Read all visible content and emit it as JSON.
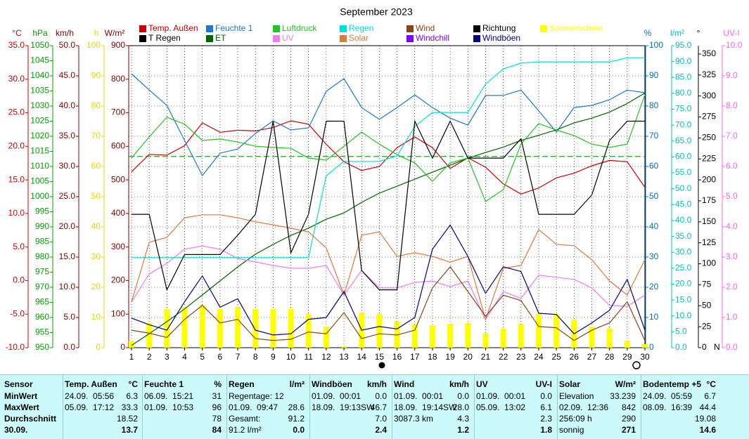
{
  "chart_data": {
    "type": "line",
    "title": "September 2023",
    "x": [
      1,
      2,
      3,
      4,
      5,
      6,
      7,
      8,
      9,
      10,
      11,
      12,
      13,
      14,
      15,
      16,
      17,
      18,
      19,
      20,
      21,
      22,
      23,
      24,
      25,
      26,
      27,
      28,
      29,
      30
    ],
    "xlim": [
      1,
      30
    ],
    "xticks": [
      1,
      2,
      3,
      4,
      5,
      6,
      7,
      8,
      9,
      10,
      11,
      12,
      13,
      14,
      15,
      16,
      17,
      18,
      19,
      20,
      21,
      22,
      23,
      24,
      25,
      26,
      27,
      28,
      29,
      30
    ],
    "grid": true,
    "axes": [
      {
        "unit": "°C",
        "color": "#d00000",
        "side": "left",
        "lim": [
          -10,
          35
        ],
        "ticks": [
          {
            "value": -10,
            "label": "-10.0"
          },
          {
            "value": -5,
            "label": "-5.0"
          },
          {
            "value": 0,
            "label": "0.0"
          },
          {
            "value": 5,
            "label": "5.0"
          },
          {
            "value": 10,
            "label": "10.0"
          },
          {
            "value": 15,
            "label": "15.0"
          },
          {
            "value": 20,
            "label": "20.0"
          },
          {
            "value": 25,
            "label": "25.0"
          },
          {
            "value": 30,
            "label": "30.0"
          },
          {
            "value": 35,
            "label": "35.0"
          }
        ]
      },
      {
        "unit": "hPa",
        "color": "#00a000",
        "side": "left",
        "lim": [
          950,
          1050
        ],
        "ticks": [
          950,
          955,
          960,
          965,
          970,
          975,
          980,
          985,
          990,
          995,
          1000,
          1005,
          1010,
          1015,
          1020,
          1025,
          1030,
          1035,
          1040,
          1045,
          1050
        ]
      },
      {
        "unit": "km/h",
        "color": "#800000",
        "side": "left",
        "lim": [
          0,
          50
        ],
        "ticks": [
          {
            "value": 0,
            "label": "0.0"
          },
          {
            "value": 5,
            "label": "5.0"
          },
          {
            "value": 10,
            "label": "10.0"
          },
          {
            "value": 15,
            "label": "15.0"
          },
          {
            "value": 20,
            "label": "20.0"
          },
          {
            "value": 25,
            "label": "25.0"
          },
          {
            "value": 30,
            "label": "30.0"
          },
          {
            "value": 35,
            "label": "35.0"
          },
          {
            "value": 40,
            "label": "40.0"
          },
          {
            "value": 45,
            "label": "45.0"
          },
          {
            "value": 50,
            "label": "50.0"
          }
        ]
      },
      {
        "unit": "h",
        "color": "#e8d800",
        "side": "left",
        "lim": [
          0,
          100
        ],
        "ticks": [
          0,
          10,
          20,
          30,
          40,
          50,
          60,
          70,
          80,
          90,
          100
        ]
      },
      {
        "unit": "W/m²",
        "color": "#800000",
        "side": "left",
        "lim": [
          0,
          900
        ],
        "ticks": [
          0,
          100,
          200,
          300,
          400,
          500,
          600,
          700,
          800,
          900
        ]
      },
      {
        "unit": "%",
        "color": "#0070c0",
        "side": "right",
        "lim": [
          0,
          100
        ],
        "grid": true,
        "ticks": [
          0,
          10,
          20,
          30,
          40,
          50,
          60,
          70,
          80,
          90,
          100
        ]
      },
      {
        "unit": "l/m²",
        "color": "#00c0c0",
        "side": "right",
        "lim": [
          0,
          95
        ],
        "ticks": [
          {
            "value": 0,
            "label": "0.0"
          },
          {
            "value": 5,
            "label": "5.0"
          },
          {
            "value": 10,
            "label": "10.0"
          },
          {
            "value": 15,
            "label": "15.0"
          },
          {
            "value": 20,
            "label": "20.0"
          },
          {
            "value": 25,
            "label": "25.0"
          },
          {
            "value": 30,
            "label": "30.0"
          },
          {
            "value": 35,
            "label": "35.0"
          },
          {
            "value": 40,
            "label": "40.0"
          },
          {
            "value": 45,
            "label": "45.0"
          },
          {
            "value": 50,
            "label": "50.0"
          },
          {
            "value": 55,
            "label": "55.0"
          },
          {
            "value": 60,
            "label": "60.0"
          },
          {
            "value": 65,
            "label": "65.0"
          },
          {
            "value": 70,
            "label": "70.0"
          },
          {
            "value": 75,
            "label": "75.0"
          },
          {
            "value": 80,
            "label": "80.0"
          },
          {
            "value": 85,
            "label": "85.0"
          },
          {
            "value": 90,
            "label": "90.0"
          },
          {
            "value": 95,
            "label": "95.0"
          }
        ]
      },
      {
        "unit": "°",
        "color": "#000000",
        "side": "right",
        "lim": [
          0,
          360
        ],
        "zero_label": "N",
        "ticks": [
          0,
          25,
          50,
          75,
          100,
          125,
          150,
          175,
          200,
          225,
          250,
          275,
          300,
          325,
          350
        ]
      },
      {
        "unit": "UV-I",
        "color": "#ff60ff",
        "side": "right",
        "lim": [
          0,
          10
        ],
        "ticks": [
          {
            "value": 0,
            "label": "0.0"
          },
          {
            "value": 1,
            "label": "1.0"
          },
          {
            "value": 2,
            "label": "2.0"
          },
          {
            "value": 3,
            "label": "3.0"
          },
          {
            "value": 4,
            "label": "4.0"
          },
          {
            "value": 5,
            "label": "5.0"
          },
          {
            "value": 6,
            "label": "6.0"
          },
          {
            "value": 7,
            "label": "7.0"
          },
          {
            "value": 8,
            "label": "8.0"
          },
          {
            "value": 9,
            "label": "9.0"
          },
          {
            "value": 10,
            "label": "10.0"
          }
        ]
      }
    ],
    "reference_line": {
      "axis": 1,
      "value": 1013.3
    },
    "series": [
      {
        "name": "Temp. Außen",
        "color": "#cc0000",
        "axis": 0,
        "values": [
          16.2,
          18.8,
          18.7,
          20.1,
          23.5,
          22.1,
          22.4,
          22.3,
          22.8,
          23.8,
          23.3,
          20.3,
          17.7,
          16.4,
          17.0,
          19.8,
          21.4,
          19.8,
          16.7,
          18.3,
          16.9,
          14.4,
          12.9,
          13.8,
          15.3,
          16.0,
          17.1,
          17.9,
          17.7,
          13.9
        ]
      },
      {
        "name": "T Regen",
        "color": "#000000",
        "axis": 0,
        "values": [
          null,
          null,
          null,
          null,
          null,
          null,
          null,
          null,
          null,
          null,
          null,
          null,
          null,
          null,
          null,
          null,
          null,
          null,
          null,
          null,
          null,
          null,
          null,
          null,
          null,
          null,
          null,
          null,
          null,
          null
        ]
      },
      {
        "name": "Feuchte 1",
        "color": "#1e78c8",
        "axis": 5,
        "values": [
          90.7,
          85.3,
          80.2,
          68.6,
          57.0,
          64.4,
          65.8,
          70.9,
          75.1,
          72.1,
          72.8,
          84.9,
          89.1,
          79.5,
          75.6,
          79.5,
          83.7,
          79.5,
          76.0,
          73.7,
          83.5,
          83.5,
          85.3,
          78.4,
          71.4,
          79.5,
          80.2,
          82.1,
          85.3,
          84.4
        ]
      },
      {
        "name": "ET",
        "color": "#006400",
        "axis": 6,
        "values": [
          0.7,
          4.4,
          8.2,
          12.2,
          16.6,
          21.0,
          25.4,
          29.4,
          32.5,
          35.3,
          37.6,
          40.4,
          42.4,
          45.7,
          48.6,
          50.8,
          53.0,
          55.2,
          57.4,
          59.6,
          61.4,
          63.1,
          65.2,
          66.8,
          68.5,
          70.7,
          72.2,
          74.1,
          76.8,
          80.1
        ]
      },
      {
        "name": "Luftdruck",
        "color": "#22c322",
        "axis": 1,
        "values": [
          1012.8,
          1019.8,
          1026.3,
          1024.0,
          1018.6,
          1019.1,
          1018.1,
          1016.7,
          1016.3,
          1016.0,
          1012.8,
          1012.1,
          1016.7,
          1021.4,
          1017.4,
          1013.9,
          1011.2,
          1005.1,
          1011.2,
          1012.8,
          998.4,
          1002.3,
          1017.4,
          1024.2,
          1022.1,
          1020.2,
          1017.4,
          1016.3,
          1017.4,
          1033.7
        ]
      },
      {
        "name": "UV",
        "color": "#f07cf0",
        "axis": 8,
        "values": [
          1.51,
          2.44,
          2.79,
          3.26,
          3.37,
          3.26,
          2.95,
          2.84,
          2.72,
          2.63,
          2.63,
          2.72,
          1.74,
          2.56,
          1.98,
          1.98,
          2.16,
          2.21,
          2.02,
          2.21,
          0.93,
          1.86,
          1.63,
          2.4,
          2.33,
          2.26,
          1.98,
          1.4,
          1.37,
          1.74
        ]
      },
      {
        "name": "Regen",
        "color": "#00e0e0",
        "axis": 6,
        "values": [
          28.3,
          28.3,
          28.3,
          28.3,
          28.3,
          28.3,
          28.3,
          28.3,
          28.3,
          28.3,
          28.3,
          54.1,
          58.6,
          58.6,
          58.6,
          60.3,
          69.6,
          74.0,
          74.0,
          74.0,
          82.9,
          87.7,
          89.5,
          89.9,
          89.9,
          89.9,
          89.9,
          89.9,
          91.2,
          91.2
        ]
      },
      {
        "name": "Solar",
        "color": "#e0783c",
        "axis": 4,
        "values": [
          136,
          314,
          329,
          387,
          396,
          396,
          387,
          375,
          366,
          356,
          345,
          297,
          157,
          335,
          345,
          272,
          283,
          272,
          255,
          272,
          84,
          236,
          245,
          352,
          308,
          304,
          262,
          199,
          157,
          262
        ]
      },
      {
        "name": "Wind",
        "color": "#8b4513",
        "axis": 2,
        "values": [
          2.9,
          2.4,
          1.7,
          4.7,
          7.0,
          4.1,
          4.7,
          1.5,
          1.2,
          1.4,
          2.6,
          2.3,
          5.8,
          1.5,
          2.3,
          2.1,
          2.9,
          9.9,
          13.4,
          9.3,
          5.2,
          8.7,
          7.8,
          3.5,
          3.3,
          1.2,
          2.9,
          4.1,
          7.6,
          1.2
        ]
      },
      {
        "name": "Windchill",
        "color": "#8000ff",
        "axis": 0,
        "values": [
          null,
          null,
          null,
          null,
          null,
          null,
          null,
          null,
          null,
          null,
          null,
          null,
          null,
          null,
          null,
          null,
          null,
          null,
          null,
          null,
          null,
          null,
          null,
          null,
          null,
          null,
          null,
          null,
          null,
          null
        ]
      },
      {
        "name": "Richtung",
        "color": "#000000",
        "axis": 7,
        "values": [
          159,
          159,
          69,
          111,
          111,
          111,
          134,
          159,
          270,
          113,
          159,
          270,
          270,
          92,
          69,
          69,
          270,
          226,
          270,
          226,
          226,
          226,
          249,
          159,
          159,
          159,
          182,
          247,
          270,
          270
        ]
      },
      {
        "name": "Windböen",
        "color": "#000080",
        "axis": 2,
        "values": [
          4.9,
          3.8,
          2.9,
          7.6,
          11.9,
          6.7,
          8.1,
          2.9,
          2.1,
          2.3,
          4.7,
          5.0,
          9.3,
          2.9,
          3.5,
          3.1,
          5.0,
          16.3,
          20.3,
          15.1,
          9.0,
          13.4,
          12.6,
          5.7,
          5.5,
          2.3,
          4.1,
          6.2,
          11.3,
          2.9
        ]
      },
      {
        "name": "Sonnenschein",
        "color": "#ffff00",
        "axis": 3,
        "type": "bar",
        "values": [
          2.3,
          8.1,
          12.8,
          13.5,
          14.0,
          12.8,
          13.5,
          12.8,
          12.8,
          12.8,
          11.2,
          7.0,
          0.5,
          11.6,
          11.2,
          8.6,
          7.7,
          7.4,
          7.9,
          8.1,
          4.7,
          6.3,
          7.7,
          11.2,
          11.2,
          9.3,
          7.0,
          6.3,
          2.3,
          1.2
        ]
      }
    ]
  },
  "table": {
    "row_labels": [
      "Sensor",
      "MinWert",
      "MaxWert",
      "Durchschnitt",
      "30.09."
    ],
    "columns": [
      {
        "title": "Temp. Außen",
        "unit": "°C",
        "cells": [
          {
            "l": "24.09.  05:56",
            "r": "6.3"
          },
          {
            "l": "05.09.  17:12",
            "r": "33.3"
          },
          {
            "r": "18.52"
          },
          {
            "r": "13.7"
          }
        ]
      },
      {
        "title": "Feuchte 1",
        "unit": "%",
        "cells": [
          {
            "l": "06.09.  15:21",
            "r": "31"
          },
          {
            "l": "01.09.  10:53",
            "r": "96"
          },
          {
            "r": "78"
          },
          {
            "r": "84"
          }
        ]
      },
      {
        "title": "Regen",
        "unit": "l/m²",
        "cells": [
          {
            "l": "Regentage: 12"
          },
          {
            "l": "01.09.  09:47",
            "r": "28.6"
          },
          {
            "l": "Gesamt:",
            "r": "91.2"
          },
          {
            "l": "91.2 l/m²",
            "r": "0.0"
          }
        ]
      },
      {
        "title": "Windböen",
        "unit": "km/h",
        "cells": [
          {
            "l": "01.09.  00:01",
            "r": "0.0"
          },
          {
            "l": "18.09.  19:13SW",
            "r": "46.7"
          },
          {
            "r": "7.0"
          },
          {
            "r": "2.4"
          }
        ]
      },
      {
        "title": "Wind",
        "unit": "km/h",
        "cells": [
          {
            "l": "01.09.  00:01",
            "r": "0.0"
          },
          {
            "l": "18.09.  19:14SW",
            "r": "28.0"
          },
          {
            "l": "3087.3 km",
            "r": "4.3"
          },
          {
            "r": "1.2"
          }
        ]
      },
      {
        "title": "UV",
        "unit": "UV-I",
        "cells": [
          {
            "l": "01.09.  00:01",
            "r": "0.0"
          },
          {
            "l": "05.09.  13:02",
            "r": "6.1"
          },
          {
            "r": "2.3"
          },
          {
            "r": "1.8"
          }
        ]
      },
      {
        "title": "Solar",
        "unit": "W/m²",
        "cells": [
          {
            "l": "Elevation",
            "r": "33.239"
          },
          {
            "l": "02.09.  12:36",
            "r": "842"
          },
          {
            "l": "256:09 h",
            "r": "290"
          },
          {
            "l": "sonnig",
            "r": "271"
          }
        ]
      },
      {
        "title": "Bodentemp +5",
        "unit": "°C",
        "cells": [
          {
            "l": "24.09.  05:59",
            "r": "6.7"
          },
          {
            "l": "08.09.  16:39",
            "r": "44.4"
          },
          {
            "r": "19.08"
          },
          {
            "r": "14.6"
          }
        ]
      }
    ]
  }
}
